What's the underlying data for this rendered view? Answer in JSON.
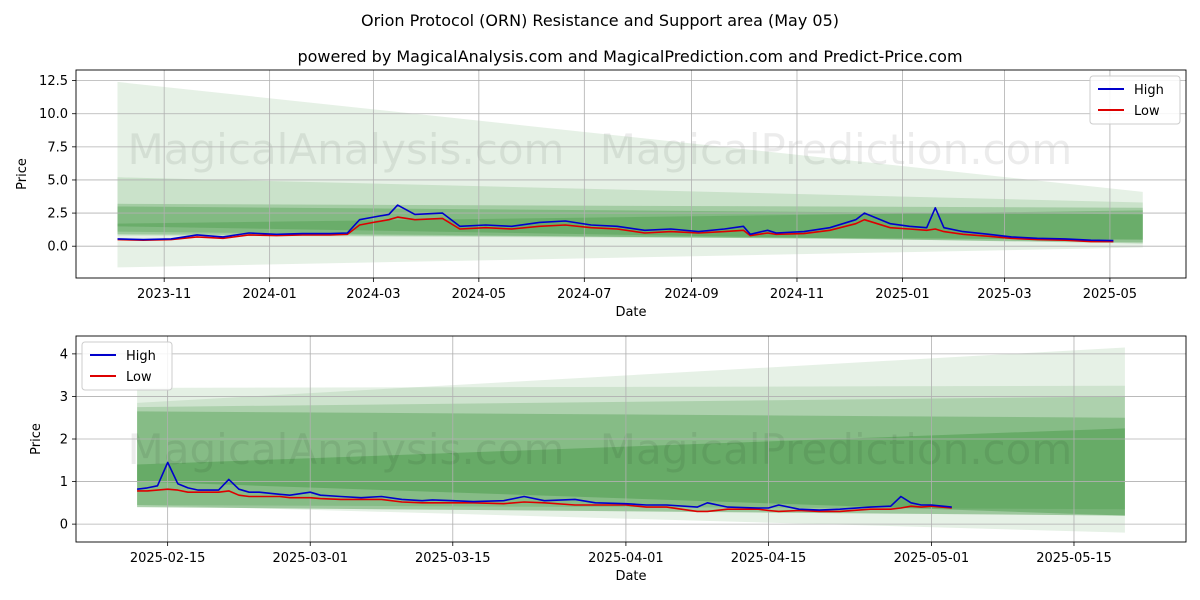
{
  "title": "Orion Protocol (ORN) Resistance and Support area (May 05)",
  "subtitle": "powered by MagicalAnalysis.com and MagicalPrediction.com and Predict-Price.com",
  "watermarks": [
    "MagicalAnalysis.com",
    "MagicalPrediction.com"
  ],
  "colors": {
    "high": "#0000cc",
    "low": "#dd0000",
    "band": "#2e8b2e"
  },
  "chart_data": [
    {
      "type": "line",
      "xlabel": "Date",
      "ylabel": "Price",
      "xlim": [
        "2023-09-11",
        "2025-06-14"
      ],
      "ylim": [
        -2.4,
        13.3
      ],
      "xticks": [
        "2023-11",
        "2024-01",
        "2024-03",
        "2024-05",
        "2024-07",
        "2024-09",
        "2024-11",
        "2025-01",
        "2025-03",
        "2025-05"
      ],
      "yticks": [
        "0.0",
        "2.5",
        "5.0",
        "7.5",
        "10.0",
        "12.5"
      ],
      "grid": true,
      "legend_position": "top-right",
      "x": [
        "2023-10-05",
        "2023-10-20",
        "2023-11-05",
        "2023-11-20",
        "2023-12-05",
        "2023-12-20",
        "2024-01-05",
        "2024-01-20",
        "2024-02-05",
        "2024-02-15",
        "2024-02-22",
        "2024-03-01",
        "2024-03-10",
        "2024-03-15",
        "2024-03-25",
        "2024-04-10",
        "2024-04-20",
        "2024-05-05",
        "2024-05-20",
        "2024-06-05",
        "2024-06-20",
        "2024-07-05",
        "2024-07-20",
        "2024-08-05",
        "2024-08-20",
        "2024-09-05",
        "2024-09-20",
        "2024-10-01",
        "2024-10-05",
        "2024-10-15",
        "2024-10-20",
        "2024-11-05",
        "2024-11-20",
        "2024-12-05",
        "2024-12-10",
        "2024-12-25",
        "2025-01-05",
        "2025-01-15",
        "2025-01-20",
        "2025-01-25",
        "2025-02-05",
        "2025-02-20",
        "2025-03-05",
        "2025-03-20",
        "2025-04-05",
        "2025-04-20",
        "2025-05-03"
      ],
      "series": [
        {
          "name": "High",
          "values": [
            0.55,
            0.5,
            0.55,
            0.85,
            0.7,
            1.0,
            0.9,
            0.95,
            0.95,
            1.0,
            2.0,
            2.2,
            2.4,
            3.1,
            2.4,
            2.5,
            1.5,
            1.6,
            1.5,
            1.8,
            1.9,
            1.6,
            1.5,
            1.2,
            1.3,
            1.1,
            1.3,
            1.5,
            0.9,
            1.2,
            1.0,
            1.1,
            1.4,
            2.0,
            2.5,
            1.7,
            1.5,
            1.4,
            2.9,
            1.4,
            1.1,
            0.9,
            0.7,
            0.6,
            0.55,
            0.45,
            0.42
          ]
        },
        {
          "name": "Low",
          "values": [
            0.5,
            0.45,
            0.5,
            0.7,
            0.6,
            0.85,
            0.8,
            0.85,
            0.85,
            0.9,
            1.6,
            1.8,
            2.0,
            2.2,
            2.0,
            2.1,
            1.3,
            1.4,
            1.3,
            1.5,
            1.6,
            1.4,
            1.3,
            1.0,
            1.1,
            1.0,
            1.1,
            1.2,
            0.8,
            1.0,
            0.9,
            0.95,
            1.2,
            1.7,
            2.0,
            1.4,
            1.3,
            1.2,
            1.3,
            1.1,
            0.9,
            0.75,
            0.6,
            0.5,
            0.45,
            0.35,
            0.35
          ]
        }
      ]
    },
    {
      "type": "line",
      "xlabel": "Date",
      "ylabel": "Price",
      "xlim": [
        "2025-02-06",
        "2025-05-26"
      ],
      "ylim": [
        -0.42,
        4.42
      ],
      "xticks": [
        "2025-02-15",
        "2025-03-01",
        "2025-03-15",
        "2025-04-01",
        "2025-04-15",
        "2025-05-01",
        "2025-05-15"
      ],
      "yticks": [
        "0",
        "1",
        "2",
        "3",
        "4"
      ],
      "grid": true,
      "legend_position": "top-left",
      "x": [
        "2025-02-12",
        "2025-02-13",
        "2025-02-14",
        "2025-02-15",
        "2025-02-16",
        "2025-02-17",
        "2025-02-18",
        "2025-02-20",
        "2025-02-21",
        "2025-02-22",
        "2025-02-23",
        "2025-02-24",
        "2025-02-26",
        "2025-02-27",
        "2025-03-01",
        "2025-03-02",
        "2025-03-04",
        "2025-03-06",
        "2025-03-08",
        "2025-03-10",
        "2025-03-12",
        "2025-03-13",
        "2025-03-15",
        "2025-03-17",
        "2025-03-20",
        "2025-03-22",
        "2025-03-24",
        "2025-03-27",
        "2025-03-29",
        "2025-04-01",
        "2025-04-03",
        "2025-04-05",
        "2025-04-08",
        "2025-04-09",
        "2025-04-11",
        "2025-04-14",
        "2025-04-15",
        "2025-04-16",
        "2025-04-18",
        "2025-04-20",
        "2025-04-22",
        "2025-04-25",
        "2025-04-27",
        "2025-04-28",
        "2025-04-29",
        "2025-04-30",
        "2025-05-01",
        "2025-05-03"
      ],
      "series": [
        {
          "name": "High",
          "values": [
            0.82,
            0.85,
            0.9,
            1.45,
            0.95,
            0.85,
            0.8,
            0.8,
            1.05,
            0.82,
            0.75,
            0.75,
            0.7,
            0.68,
            0.75,
            0.68,
            0.65,
            0.62,
            0.65,
            0.58,
            0.55,
            0.57,
            0.55,
            0.53,
            0.55,
            0.65,
            0.55,
            0.58,
            0.5,
            0.48,
            0.45,
            0.45,
            0.4,
            0.5,
            0.4,
            0.38,
            0.38,
            0.45,
            0.35,
            0.33,
            0.35,
            0.4,
            0.42,
            0.65,
            0.5,
            0.45,
            0.45,
            0.4
          ]
        },
        {
          "name": "Low",
          "values": [
            0.78,
            0.78,
            0.8,
            0.82,
            0.8,
            0.75,
            0.75,
            0.75,
            0.78,
            0.68,
            0.65,
            0.65,
            0.65,
            0.62,
            0.62,
            0.6,
            0.58,
            0.58,
            0.58,
            0.52,
            0.5,
            0.5,
            0.5,
            0.5,
            0.48,
            0.52,
            0.5,
            0.45,
            0.45,
            0.45,
            0.4,
            0.4,
            0.3,
            0.3,
            0.35,
            0.35,
            0.32,
            0.3,
            0.32,
            0.3,
            0.3,
            0.35,
            0.35,
            0.38,
            0.42,
            0.4,
            0.42,
            0.38
          ]
        }
      ]
    }
  ]
}
